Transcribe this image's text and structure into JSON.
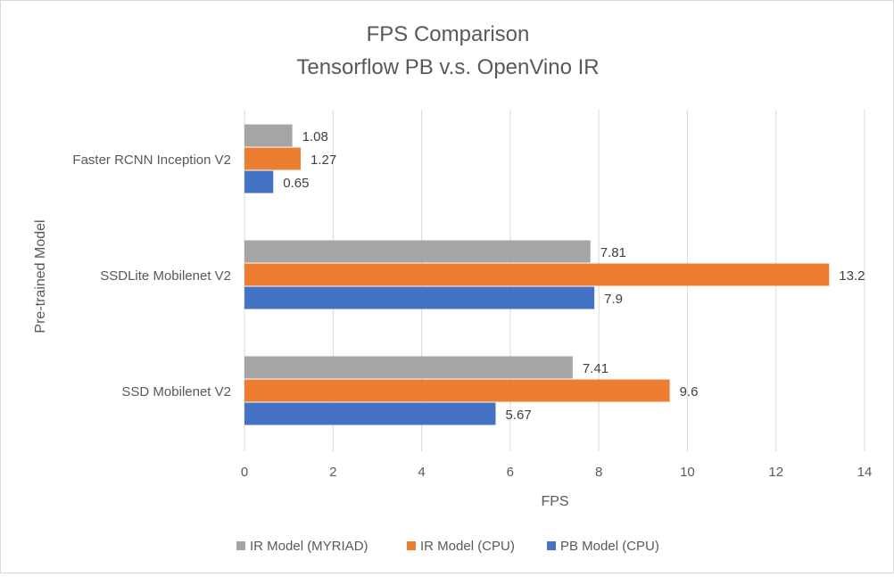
{
  "chart_data": {
    "type": "bar",
    "orientation": "horizontal",
    "title": "FPS Comparison",
    "subtitle": "Tensorflow  PB v.s. OpenVino IR",
    "xlabel": "FPS",
    "ylabel": "Pre-trained Model",
    "xlim": [
      0,
      14
    ],
    "xticks": [
      "0",
      "2",
      "4",
      "6",
      "8",
      "10",
      "12",
      "14"
    ],
    "grid": true,
    "legend_position": "bottom",
    "categories": [
      "Faster RCNN Inception V2",
      "SSDLite Mobilenet V2",
      "SSD Mobilenet V2"
    ],
    "series": [
      {
        "name": "IR Model (MYRIAD)",
        "color": "#a5a5a5",
        "values": [
          1.08,
          7.81,
          7.41
        ],
        "labels": [
          "1.08",
          "7.81",
          "7.41"
        ]
      },
      {
        "name": "IR Model (CPU)",
        "color": "#ed7d31",
        "values": [
          1.27,
          13.2,
          9.6
        ],
        "labels": [
          "1.27",
          "13.2",
          "9.6"
        ]
      },
      {
        "name": "PB Model (CPU)",
        "color": "#4472c4",
        "values": [
          0.65,
          7.9,
          5.67
        ],
        "labels": [
          "0.65",
          "7.9",
          "5.67"
        ]
      }
    ]
  }
}
